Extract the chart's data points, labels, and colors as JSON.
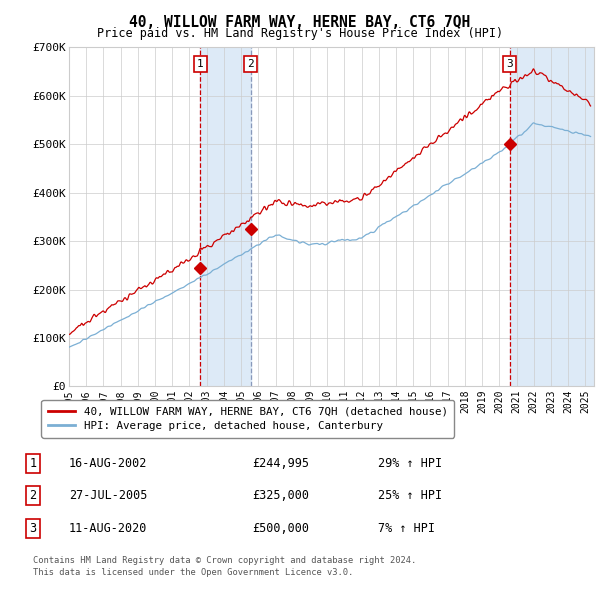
{
  "title": "40, WILLOW FARM WAY, HERNE BAY, CT6 7QH",
  "subtitle": "Price paid vs. HM Land Registry's House Price Index (HPI)",
  "ylim": [
    0,
    700000
  ],
  "yticks": [
    0,
    100000,
    200000,
    300000,
    400000,
    500000,
    600000,
    700000
  ],
  "ytick_labels": [
    "£0",
    "£100K",
    "£200K",
    "£300K",
    "£400K",
    "£500K",
    "£600K",
    "£700K"
  ],
  "sale_dates_num": [
    2002.62,
    2005.57,
    2020.61
  ],
  "sale_prices": [
    244995,
    325000,
    500000
  ],
  "sale_labels": [
    "1",
    "2",
    "3"
  ],
  "sale_date_strs": [
    "16-AUG-2002",
    "27-JUL-2005",
    "11-AUG-2020"
  ],
  "sale_price_strs": [
    "£244,995",
    "£325,000",
    "£500,000"
  ],
  "sale_hpi_strs": [
    "29% ↑ HPI",
    "25% ↑ HPI",
    "7% ↑ HPI"
  ],
  "hpi_color": "#7bafd4",
  "price_color": "#cc0000",
  "dot_color": "#cc0000",
  "shading_color": "#ddeaf7",
  "background_color": "#ffffff",
  "grid_color": "#cccccc",
  "legend_line1": "40, WILLOW FARM WAY, HERNE BAY, CT6 7QH (detached house)",
  "legend_line2": "HPI: Average price, detached house, Canterbury",
  "footer1": "Contains HM Land Registry data © Crown copyright and database right 2024.",
  "footer2": "This data is licensed under the Open Government Licence v3.0.",
  "xlim_start": 1995,
  "xlim_end": 2025.5
}
